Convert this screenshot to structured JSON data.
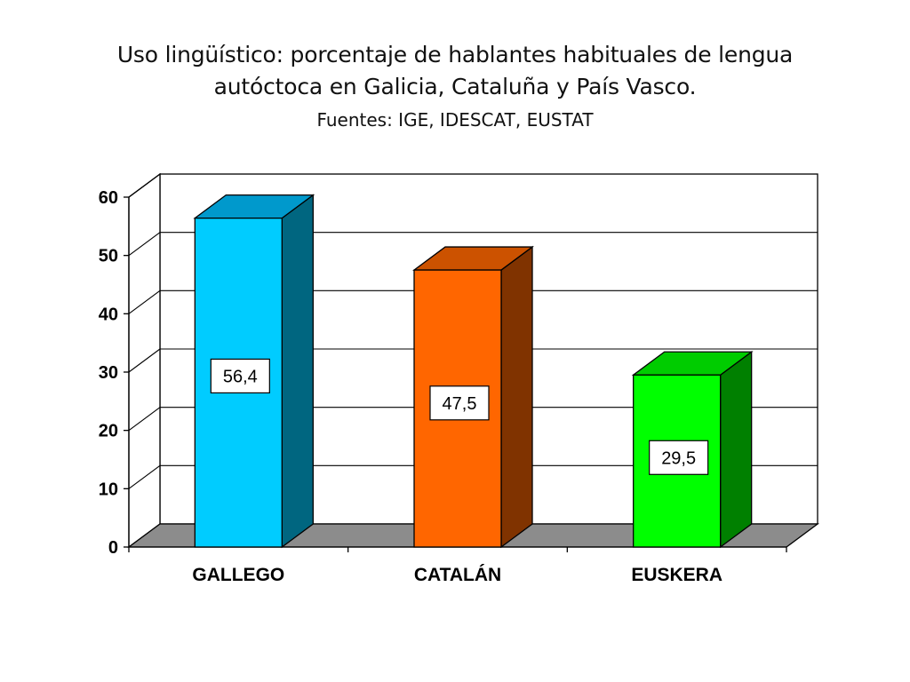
{
  "title_line1": "Uso lingüístico: porcentaje de hablantes habituales de lengua",
  "title_line2": "autóctoca en Galicia, Cataluña y País Vasco.",
  "subtitle": "Fuentes: IGE, IDESCAT, EUSTAT",
  "chart_data": {
    "type": "bar",
    "style": "3d-column",
    "categories": [
      "GALLEGO",
      "CATALÁN",
      "EUSKERA"
    ],
    "values": [
      56.4,
      47.5,
      29.5
    ],
    "data_labels": [
      "56,4",
      "47,5",
      "29,5"
    ],
    "ylim": [
      0,
      60
    ],
    "yticks": [
      0,
      10,
      20,
      30,
      40,
      50,
      60
    ],
    "ytick_labels": [
      "0",
      "10",
      "20",
      "30",
      "40",
      "50",
      "60"
    ],
    "grid": true,
    "legend": "none",
    "colors": {
      "GALLEGO": {
        "front": "#00ccff",
        "side": "#006680",
        "top": "#0099cc"
      },
      "CATALÁN": {
        "front": "#ff6600",
        "side": "#803300",
        "top": "#cc5200"
      },
      "EUSKERA": {
        "front": "#00ff00",
        "side": "#008000",
        "top": "#00cc00"
      },
      "floor": "#8c8c8c"
    }
  }
}
